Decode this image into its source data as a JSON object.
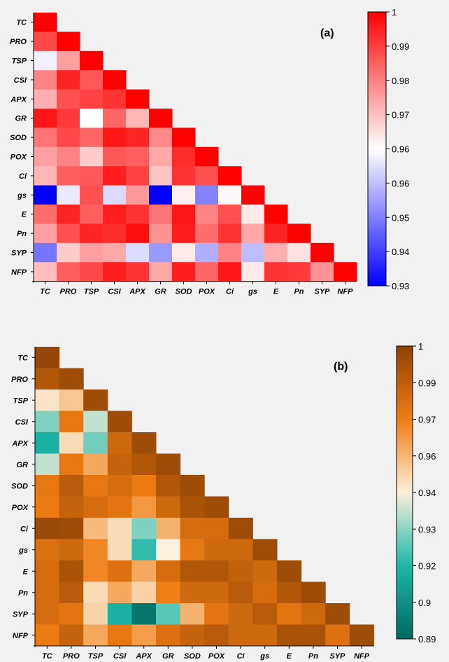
{
  "chart_data": [
    {
      "type": "heatmap",
      "panel_label": "(a)",
      "labels": [
        "TC",
        "PRO",
        "TSP",
        "CSI",
        "APX",
        "GR",
        "SOD",
        "POX",
        "Ci",
        "gs",
        "E",
        "Pn",
        "SYP",
        "NFP"
      ],
      "matrix": [
        [
          1.0
        ],
        [
          0.99,
          1.0
        ],
        [
          0.963,
          0.978,
          1.0
        ],
        [
          0.982,
          0.995,
          0.988,
          1.0
        ],
        [
          0.976,
          0.989,
          0.991,
          0.993,
          1.0
        ],
        [
          0.997,
          0.992,
          0.965,
          0.986,
          0.975,
          1.0
        ],
        [
          0.984,
          0.99,
          0.986,
          0.997,
          0.995,
          0.981,
          1.0
        ],
        [
          0.978,
          0.982,
          0.972,
          0.988,
          0.987,
          0.977,
          0.994,
          1.0
        ],
        [
          0.975,
          0.987,
          0.988,
          0.996,
          0.991,
          0.973,
          0.993,
          0.989,
          1.0
        ],
        [
          0.93,
          0.962,
          0.989,
          0.96,
          0.979,
          0.93,
          0.967,
          0.948,
          0.966,
          1.0
        ],
        [
          0.985,
          0.995,
          0.987,
          0.996,
          0.993,
          0.984,
          0.997,
          0.982,
          0.989,
          0.968,
          1.0
        ],
        [
          0.978,
          0.989,
          0.995,
          0.994,
          0.998,
          0.98,
          0.996,
          0.985,
          0.993,
          0.977,
          0.995,
          1.0
        ],
        [
          0.946,
          0.972,
          0.978,
          0.977,
          0.96,
          0.951,
          0.968,
          0.954,
          0.982,
          0.956,
          0.976,
          0.969,
          1.0
        ],
        [
          0.974,
          0.987,
          0.99,
          0.996,
          0.993,
          0.977,
          0.996,
          0.986,
          0.997,
          0.968,
          0.993,
          0.992,
          0.98,
          1.0
        ]
      ],
      "colorbar": {
        "min": 0.93,
        "max": 1,
        "ticks": [
          "0.93",
          "0.94",
          "0.95",
          "0.96",
          "0.96",
          "0.97",
          "0.98",
          "0.99",
          "1"
        ],
        "colors": [
          "#0000ff",
          "#ffffff",
          "#ff0000"
        ]
      }
    },
    {
      "type": "heatmap",
      "panel_label": "(b)",
      "labels": [
        "TC",
        "PRO",
        "TSP",
        "CSI",
        "APX",
        "GR",
        "SOD",
        "POX",
        "Ci",
        "gs",
        "E",
        "Pn",
        "SYP",
        "NFP"
      ],
      "matrix": [
        [
          0.998
        ],
        [
          0.99,
          0.995
        ],
        [
          0.948,
          0.955,
          0.995
        ],
        [
          0.93,
          0.975,
          0.938,
          0.995
        ],
        [
          0.915,
          0.95,
          0.928,
          0.982,
          0.995
        ],
        [
          0.938,
          0.975,
          0.962,
          0.984,
          0.99,
          0.995
        ],
        [
          0.975,
          0.988,
          0.975,
          0.98,
          0.974,
          0.99,
          0.995
        ],
        [
          0.974,
          0.984,
          0.98,
          0.976,
          0.966,
          0.982,
          0.992,
          0.995
        ],
        [
          0.996,
          0.995,
          0.958,
          0.95,
          0.93,
          0.96,
          0.98,
          0.98,
          0.995
        ],
        [
          0.978,
          0.982,
          0.97,
          0.95,
          0.92,
          0.945,
          0.975,
          0.982,
          0.982,
          0.995
        ],
        [
          0.98,
          0.992,
          0.97,
          0.978,
          0.962,
          0.98,
          0.99,
          0.99,
          0.985,
          0.982,
          0.995
        ],
        [
          0.98,
          0.988,
          0.95,
          0.962,
          0.952,
          0.972,
          0.982,
          0.982,
          0.988,
          0.98,
          0.99,
          0.995
        ],
        [
          0.98,
          0.976,
          0.952,
          0.915,
          0.895,
          0.925,
          0.96,
          0.976,
          0.982,
          0.988,
          0.976,
          0.982,
          0.995
        ],
        [
          0.974,
          0.984,
          0.962,
          0.975,
          0.965,
          0.978,
          0.984,
          0.988,
          0.982,
          0.982,
          0.992,
          0.992,
          0.978,
          0.995
        ]
      ],
      "colorbar": {
        "min": 0.89,
        "max": 1,
        "ticks": [
          "0.89",
          "0.9",
          "0.92",
          "0.93",
          "0.94",
          "0.96",
          "0.97",
          "0.99",
          "1"
        ],
        "colors": [
          "#00695f",
          "#1cb8a8",
          "#fbf0dc",
          "#f07d12",
          "#8c4206"
        ]
      }
    }
  ]
}
